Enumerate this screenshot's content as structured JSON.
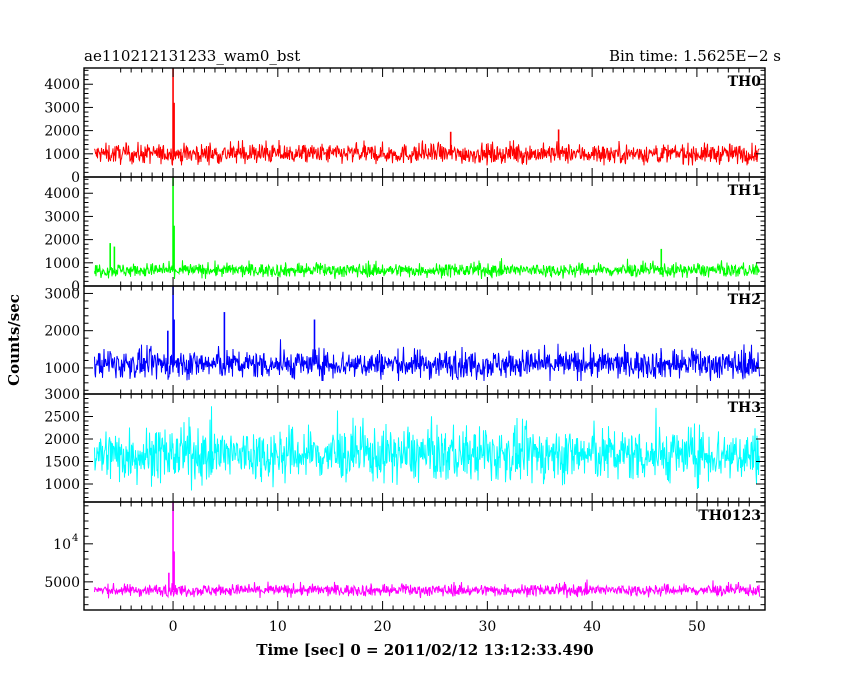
{
  "header": {
    "left": "ae110212131233_wam0_bst",
    "right": "Bin time: 1.5625E−2 s"
  },
  "chart_data": {
    "type": "line",
    "xlabel": "Time [sec] 0 = 2011/02/12 13:12:33.490",
    "ylabel": "Counts/sec",
    "x_ticks": [
      0,
      10,
      20,
      30,
      40,
      50
    ],
    "x_tick_labels": [
      "0",
      "10",
      "20",
      "30",
      "40",
      "50"
    ],
    "xlim": [
      -8.5,
      56.5
    ],
    "data_range": [
      -7.5,
      56
    ],
    "bin_time": 0.015625,
    "grid": false,
    "panels": [
      {
        "name": "TH0",
        "color": "#ff0000",
        "ylim": [
          0,
          4700
        ],
        "y_ticks": [
          0,
          1000,
          2000,
          3000,
          4000
        ],
        "y_tick_labels": [
          "0",
          "1000",
          "2000",
          "3000",
          "4000"
        ],
        "noise": {
          "base": 1000,
          "spread": 300,
          "min": 500,
          "max": 1700
        },
        "spikes": [
          {
            "x": 0.0,
            "y": 4700
          },
          {
            "x": 0.1,
            "y": 3200
          },
          {
            "x": 36.8,
            "y": 2050
          },
          {
            "x": 26.5,
            "y": 1950
          }
        ]
      },
      {
        "name": "TH1",
        "color": "#00ff00",
        "ylim": [
          0,
          4700
        ],
        "y_ticks": [
          0,
          1000,
          2000,
          3000,
          4000
        ],
        "y_tick_labels": [
          "0",
          "1000",
          "2000",
          "3000",
          "4000"
        ],
        "noise": {
          "base": 680,
          "spread": 210,
          "min": 300,
          "max": 1200
        },
        "spikes": [
          {
            "x": 0.0,
            "y": 4700
          },
          {
            "x": 0.1,
            "y": 2600
          },
          {
            "x": -6.0,
            "y": 1850
          },
          {
            "x": -5.6,
            "y": 1700
          },
          {
            "x": 46.6,
            "y": 1600
          }
        ]
      },
      {
        "name": "TH2",
        "color": "#0000ff",
        "ylim": [
          300,
          3200
        ],
        "y_ticks": [
          1000,
          2000,
          3000
        ],
        "y_tick_labels": [
          "1000",
          "2000",
          "3000"
        ],
        "noise": {
          "base": 1100,
          "spread": 270,
          "min": 650,
          "max": 1950
        },
        "spikes": [
          {
            "x": 0.0,
            "y": 3200
          },
          {
            "x": 0.1,
            "y": 2300
          },
          {
            "x": 4.9,
            "y": 2500
          },
          {
            "x": 13.5,
            "y": 2300
          },
          {
            "x": -0.5,
            "y": 2000
          }
        ]
      },
      {
        "name": "TH3",
        "color": "#00ffff",
        "ylim": [
          600,
          3000
        ],
        "y_ticks": [
          1000,
          1500,
          2000,
          2500,
          3000
        ],
        "y_tick_labels": [
          "1000",
          "1500",
          "2000",
          "2500",
          "3000"
        ],
        "noise": {
          "base": 1650,
          "spread": 420,
          "min": 700,
          "max": 3000
        },
        "spikes": []
      },
      {
        "name": "TH0123",
        "color": "#ff00ff",
        "ylim": [
          1300,
          15500
        ],
        "y_ticks": [
          5000,
          10000
        ],
        "y_tick_labels": [
          "5000",
          ""
        ],
        "y_tick_label_10000": "10",
        "y_tick_label_10000_exp": "4",
        "noise": {
          "base": 3900,
          "spread": 550,
          "min": 2800,
          "max": 6000
        },
        "spikes": [
          {
            "x": 0.0,
            "y": 15500
          },
          {
            "x": 0.1,
            "y": 9000
          },
          {
            "x": -0.4,
            "y": 6200
          }
        ]
      }
    ]
  }
}
